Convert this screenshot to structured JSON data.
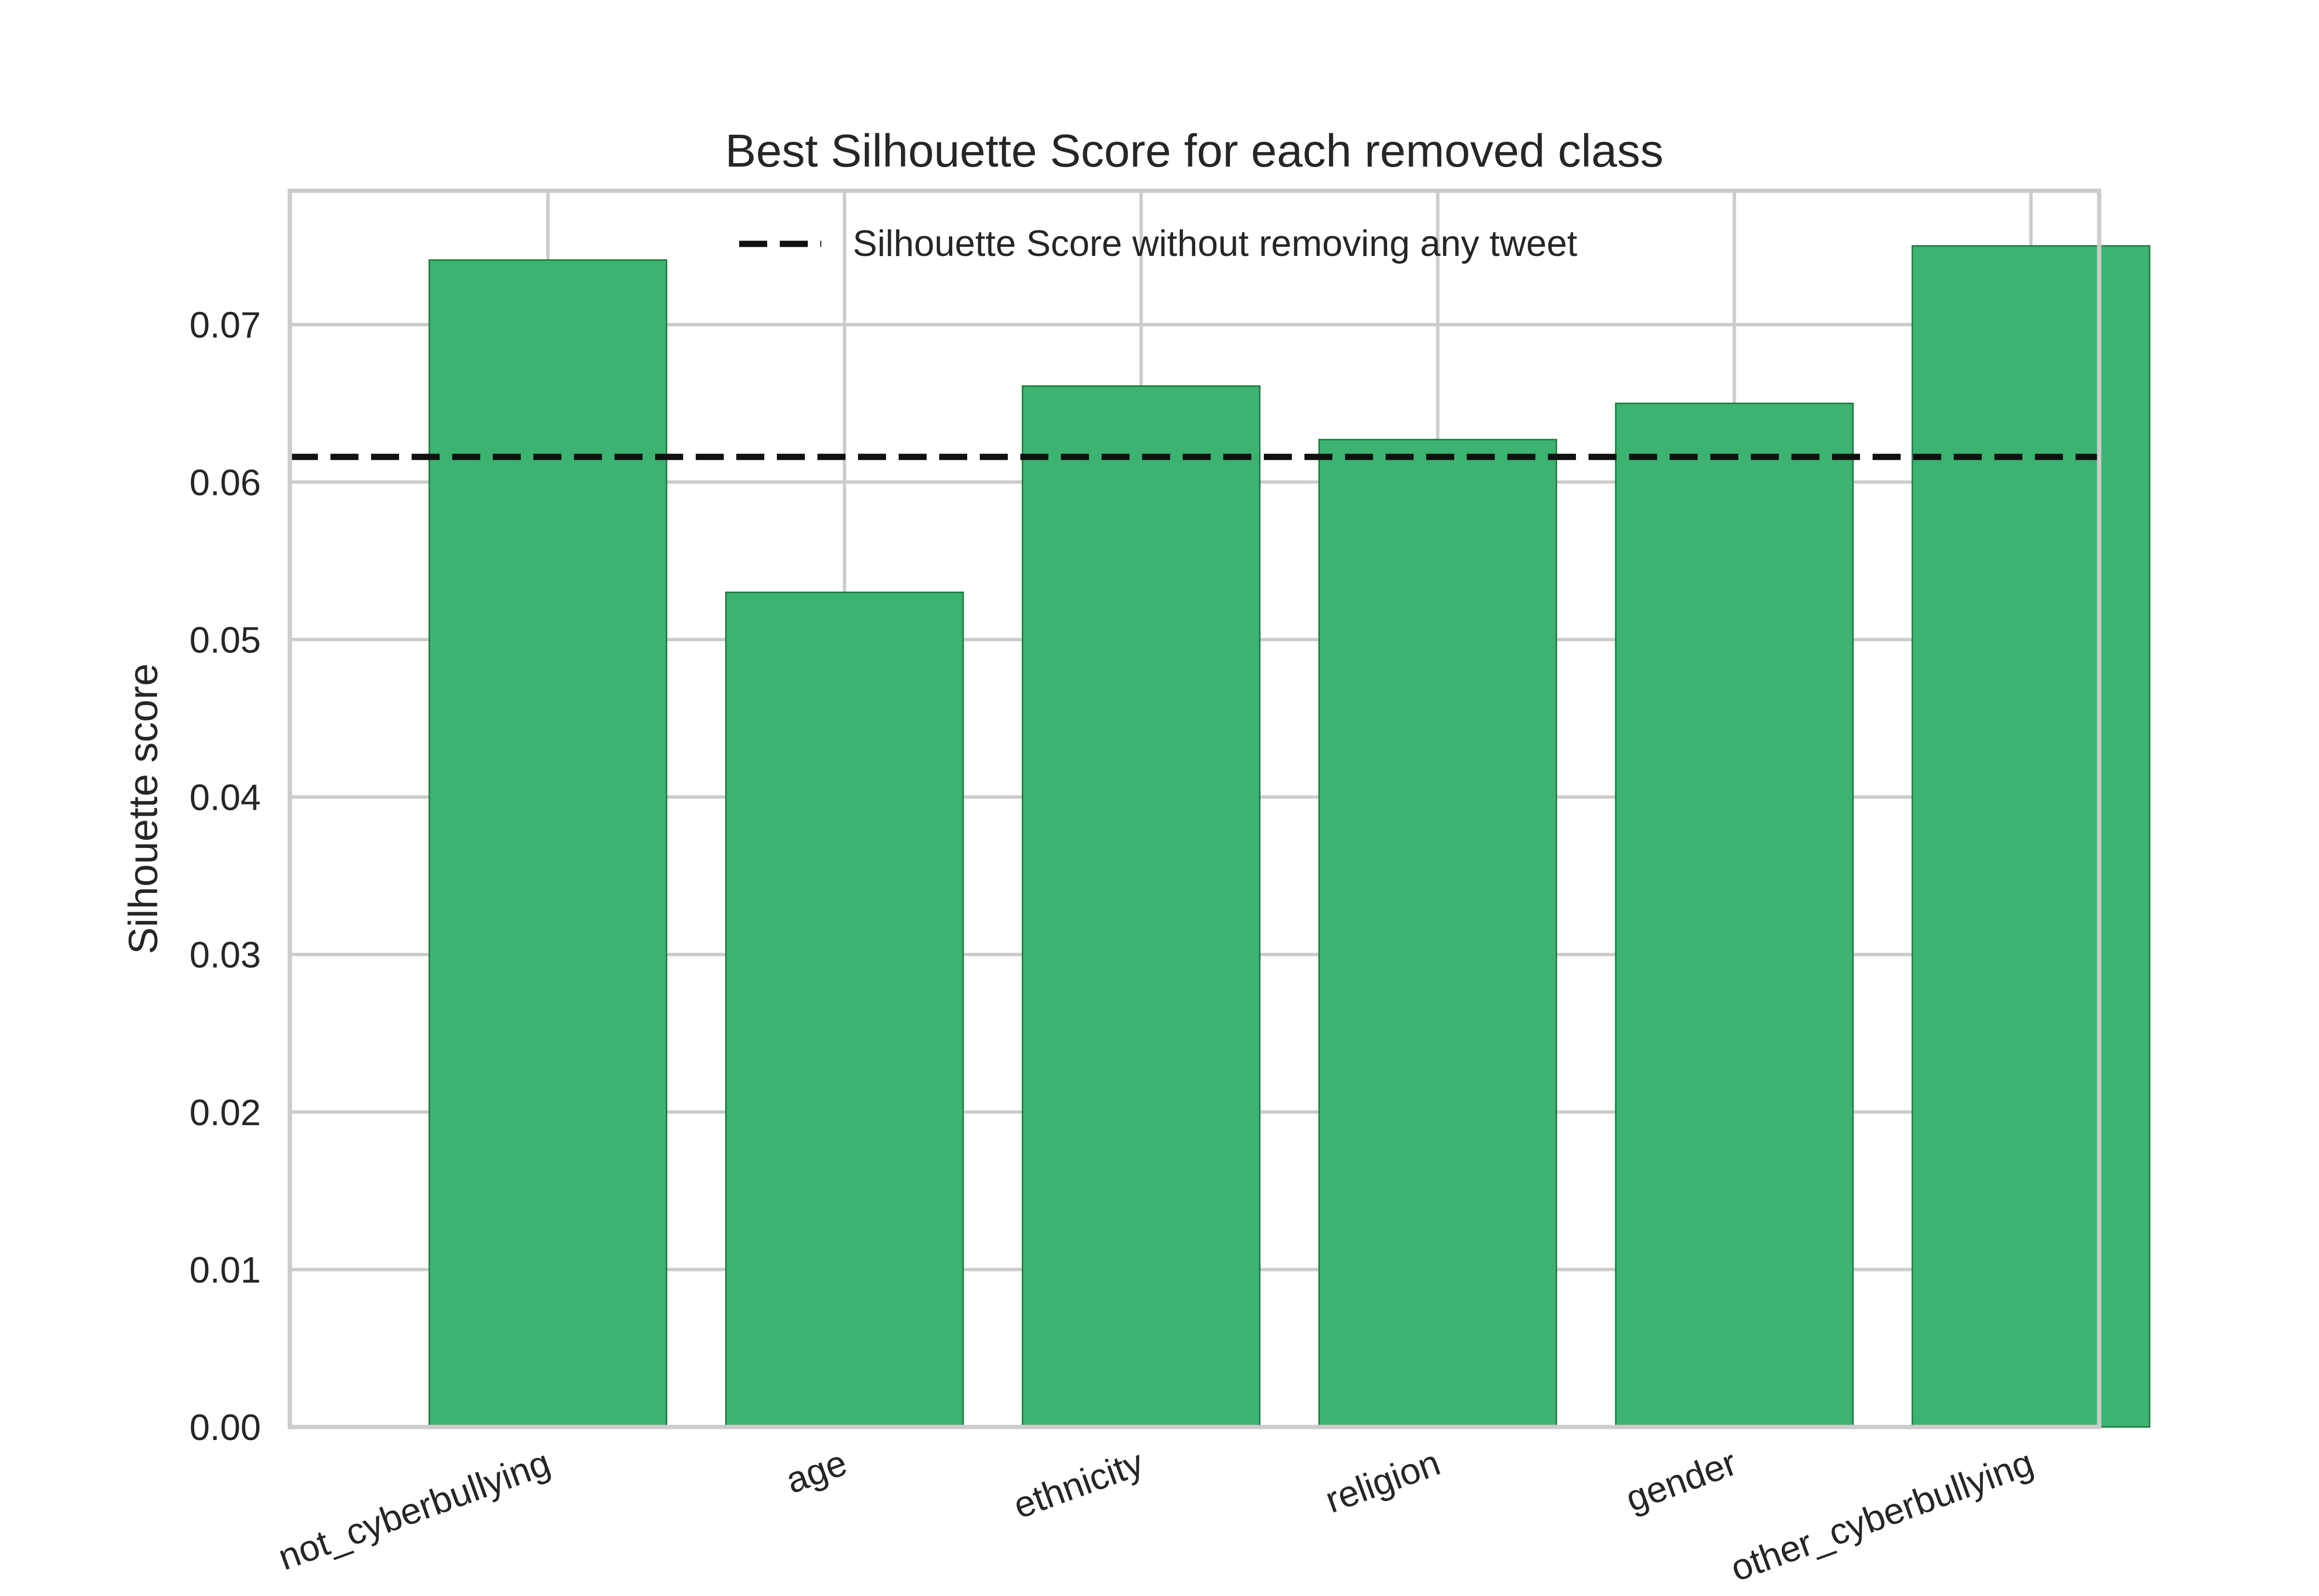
{
  "chart_data": {
    "type": "bar",
    "title": "Best Silhouette Score for each removed class",
    "xlabel": "",
    "ylabel": "Silhouette score",
    "categories": [
      "not_cyberbullying",
      "age",
      "ethnicity",
      "religion",
      "gender",
      "other_cyberbullying"
    ],
    "values": [
      0.0741,
      0.053,
      0.0661,
      0.0627,
      0.065,
      0.075
    ],
    "ylim": [
      0.0,
      0.0785
    ],
    "yticks": [
      "0.00",
      "0.01",
      "0.02",
      "0.03",
      "0.04",
      "0.05",
      "0.06",
      "0.07"
    ],
    "reference_line": {
      "value": 0.0616,
      "label": "Silhouette Score without removing any tweet",
      "color": "#111111"
    },
    "bar_color": "#3cb371",
    "grid": true,
    "legend_position": "top-center"
  }
}
